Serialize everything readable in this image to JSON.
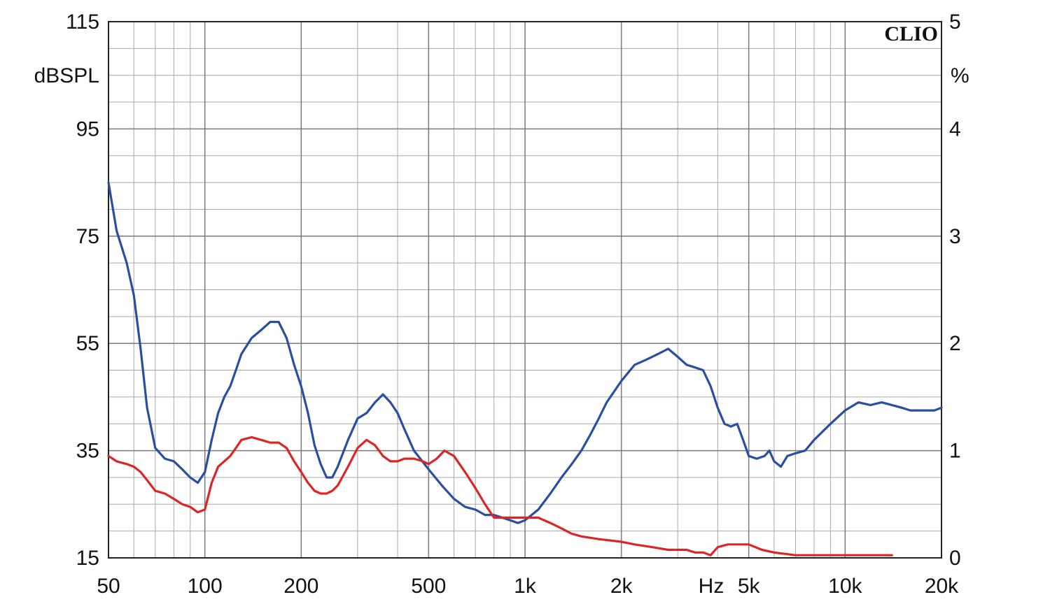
{
  "chart_data": {
    "type": "line",
    "logo": "CLIO",
    "x_unit_label": "Hz",
    "y_left_unit": "dBSPL",
    "y_right_unit": "%",
    "x_scale": "log",
    "xlim": [
      50,
      20000
    ],
    "ylim_left": [
      15,
      115
    ],
    "ylim_right": [
      0,
      5
    ],
    "grid": true,
    "x_tick_labels": [
      {
        "value": 50,
        "label": "50"
      },
      {
        "value": 100,
        "label": "100"
      },
      {
        "value": 200,
        "label": "200"
      },
      {
        "value": 500,
        "label": "500"
      },
      {
        "value": 1000,
        "label": "1k"
      },
      {
        "value": 2000,
        "label": "2k"
      },
      {
        "value": 5000,
        "label": "5k"
      },
      {
        "value": 10000,
        "label": "10k"
      },
      {
        "value": 20000,
        "label": "20k"
      }
    ],
    "y_left_tick_labels": [
      {
        "value": 115,
        "label": "115"
      },
      {
        "value": 95,
        "label": "95"
      },
      {
        "value": 75,
        "label": "75"
      },
      {
        "value": 55,
        "label": "55"
      },
      {
        "value": 35,
        "label": "35"
      },
      {
        "value": 15,
        "label": "15"
      }
    ],
    "y_right_tick_labels": [
      {
        "value": 5,
        "label": "5"
      },
      {
        "value": 4,
        "label": "4"
      },
      {
        "value": 3,
        "label": "3"
      },
      {
        "value": 2,
        "label": "2"
      },
      {
        "value": 1,
        "label": "1"
      },
      {
        "value": 0,
        "label": "0"
      }
    ],
    "series": [
      {
        "color": "#2a4fa0",
        "axis": "left",
        "x": [
          50,
          53,
          57,
          60,
          63,
          66,
          70,
          75,
          80,
          85,
          90,
          95,
          100,
          105,
          110,
          115,
          120,
          125,
          130,
          140,
          150,
          160,
          170,
          180,
          190,
          200,
          210,
          220,
          230,
          240,
          250,
          260,
          280,
          300,
          320,
          340,
          360,
          380,
          400,
          420,
          450,
          500,
          550,
          600,
          650,
          700,
          750,
          800,
          850,
          900,
          950,
          1000,
          1100,
          1200,
          1300,
          1400,
          1500,
          1600,
          1700,
          1800,
          2000,
          2200,
          2400,
          2600,
          2800,
          3000,
          3200,
          3400,
          3600,
          3800,
          4000,
          4200,
          4400,
          4600,
          4800,
          5000,
          5300,
          5600,
          5800,
          6000,
          6300,
          6600,
          7000,
          7500,
          8000,
          9000,
          10000,
          11000,
          12000,
          13000,
          14000,
          15000,
          16000,
          17000,
          18000,
          19000,
          20000
        ],
        "y": [
          85,
          76,
          70,
          64,
          54,
          43,
          35.5,
          33.5,
          33,
          31.5,
          30,
          29,
          31,
          37,
          42,
          45,
          47,
          50,
          53,
          56,
          57.5,
          59,
          59,
          56,
          51,
          47,
          42,
          36,
          32.5,
          30,
          30,
          32,
          37,
          41,
          42,
          44,
          45.5,
          44,
          42,
          39,
          35,
          31.5,
          28.5,
          26,
          24.5,
          24,
          23,
          23,
          22.5,
          22,
          21.5,
          22,
          24,
          27,
          30,
          32.5,
          35,
          38,
          41,
          44,
          48,
          51,
          52,
          53,
          54,
          52.5,
          51,
          50.5,
          50,
          47,
          43,
          40,
          39.5,
          40,
          37,
          34,
          33.5,
          34,
          35,
          33,
          32,
          34,
          34.5,
          35,
          37,
          40,
          42.5,
          44,
          43.5,
          44,
          43.5,
          43,
          42.5,
          42.5,
          42.5,
          42.5,
          43
        ]
      },
      {
        "color": "#dc2626",
        "axis": "left",
        "x": [
          50,
          53,
          57,
          60,
          63,
          66,
          70,
          75,
          80,
          85,
          90,
          95,
          100,
          105,
          110,
          115,
          120,
          125,
          130,
          140,
          150,
          160,
          170,
          180,
          190,
          200,
          210,
          220,
          230,
          240,
          250,
          260,
          280,
          300,
          320,
          340,
          360,
          380,
          400,
          420,
          450,
          480,
          500,
          530,
          560,
          600,
          650,
          700,
          750,
          800,
          850,
          900,
          950,
          1000,
          1100,
          1200,
          1300,
          1400,
          1500,
          1700,
          2000,
          2200,
          2500,
          2800,
          3000,
          3200,
          3400,
          3600,
          3800,
          4000,
          4300,
          4600,
          4800,
          5000,
          5500,
          6000,
          7000,
          8000,
          9000,
          10000,
          11000,
          12000,
          13000,
          14000
        ],
        "y": [
          34,
          33,
          32.5,
          32,
          31,
          29.5,
          27.5,
          27,
          26,
          25,
          24.5,
          23.5,
          24,
          29,
          32,
          33,
          34,
          35.5,
          37,
          37.5,
          37,
          36.5,
          36.5,
          35.5,
          33,
          31,
          29,
          27.5,
          27,
          27,
          27.5,
          28.5,
          32,
          35.5,
          37,
          36,
          34,
          33,
          33,
          33.5,
          33.5,
          33,
          32.5,
          33.5,
          35,
          34,
          31,
          28,
          25,
          22.5,
          22.5,
          22.5,
          22.5,
          22.5,
          22.5,
          21.5,
          20.5,
          19.5,
          19,
          18.5,
          18,
          17.5,
          17,
          16.5,
          16.5,
          16.5,
          16,
          16,
          15.5,
          17,
          17.5,
          17.5,
          17.5,
          17.5,
          16.5,
          16,
          15.5,
          15.5,
          15.5,
          15.5,
          15.5,
          15.5,
          15.5,
          15.5
        ]
      }
    ]
  }
}
